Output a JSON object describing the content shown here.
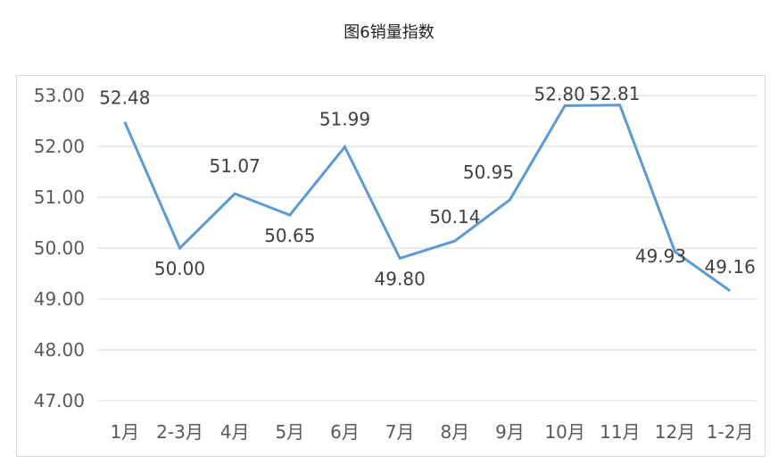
{
  "title": "图6销量指数",
  "chart_data": {
    "type": "line",
    "title": "图6销量指数",
    "xlabel": "",
    "ylabel": "",
    "categories": [
      "1月",
      "2-3月",
      "4月",
      "5月",
      "6月",
      "7月",
      "8月",
      "9月",
      "10月",
      "11月",
      "12月",
      "1-2月"
    ],
    "series": [
      {
        "values": [
          52.48,
          50.0,
          51.07,
          50.65,
          51.99,
          49.8,
          50.14,
          50.95,
          52.8,
          52.81,
          49.93,
          49.16
        ],
        "labels": [
          "52.48",
          "50.00",
          "51.07",
          "50.65",
          "51.99",
          "49.80",
          "50.14",
          "50.95",
          "52.80",
          "52.81",
          "49.93",
          "49.16"
        ],
        "color": "#5b9bd5"
      }
    ],
    "ylim": [
      47,
      53
    ],
    "yticks": [
      "47.00",
      "48.00",
      "49.00",
      "50.00",
      "51.00",
      "52.00",
      "53.00"
    ],
    "grid": true,
    "legend": "none",
    "colors": {
      "line": "#5b9bd5",
      "grid": "#d9d9d9",
      "axis_text": "#595959",
      "label_text": "#404040"
    }
  }
}
